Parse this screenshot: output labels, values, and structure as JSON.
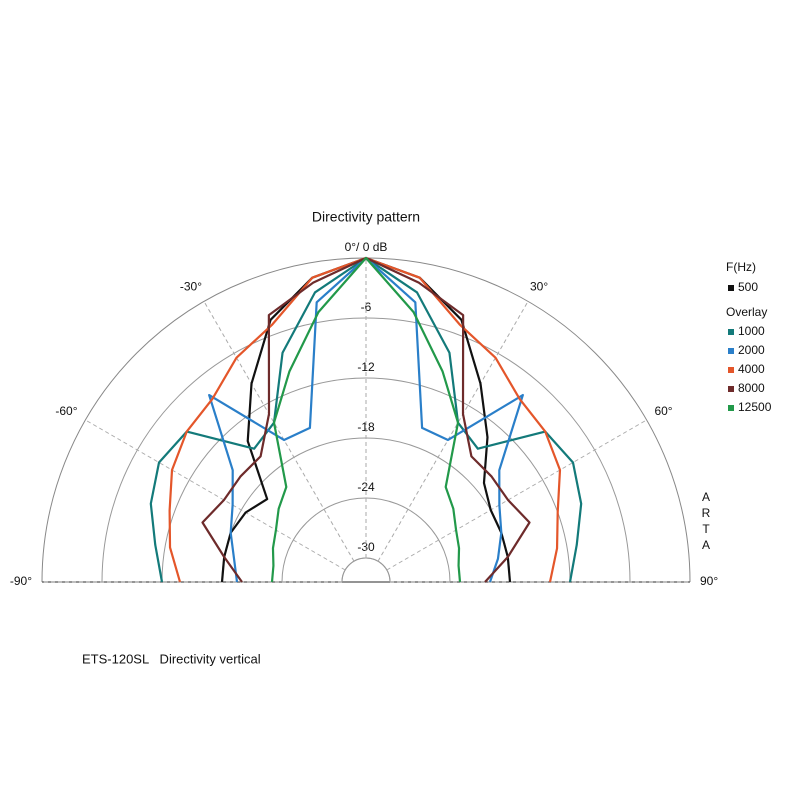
{
  "chart_data": {
    "type": "polar",
    "title": "Directivity pattern",
    "caption": "ETS-120SL   Directivity vertical",
    "side_label": "ARTA",
    "legend_title": "F(Hz)",
    "overlay_label": "Overlay",
    "angles": [
      -90,
      -80,
      -70,
      -60,
      -50,
      -40,
      -30,
      -20,
      -10,
      0,
      10,
      20,
      30,
      40,
      50,
      60,
      70,
      80,
      90
    ],
    "alim": [
      -90,
      90
    ],
    "aticks": [
      {
        "value": -90,
        "label": "-90°"
      },
      {
        "value": -60,
        "label": "-60°"
      },
      {
        "value": -30,
        "label": "-30°"
      },
      {
        "value": 0,
        "label": "0°/ 0 dB"
      },
      {
        "value": 30,
        "label": "30°"
      },
      {
        "value": 60,
        "label": "60°"
      },
      {
        "value": 90,
        "label": "90°"
      }
    ],
    "rlim": [
      -30,
      0
    ],
    "rticks": [
      -30,
      -24,
      -18,
      -12,
      -6
    ],
    "series": [
      {
        "name": "500",
        "color": "#111111",
        "values": [
          -18,
          -18,
          -18,
          -18.5,
          -19.5,
          -14,
          -9.5,
          -4.5,
          -1.5,
          0,
          -1.5,
          -4.5,
          -9.5,
          -13.5,
          -17,
          -18,
          -18,
          -18,
          -18
        ]
      },
      {
        "name": "1000",
        "color": "#137a7a",
        "values": [
          -12,
          -11,
          -9.5,
          -8.5,
          -9,
          -15,
          -14,
          -8,
          -3,
          0,
          -3,
          -8,
          -14,
          -15,
          -9,
          -8.5,
          -9.5,
          -11,
          -12
        ]
      },
      {
        "name": "2000",
        "color": "#2a7fc9",
        "values": [
          -19.5,
          -19,
          -18,
          -17,
          -15,
          -8,
          -16,
          -16,
          -4,
          0,
          -4,
          -16,
          -16,
          -8,
          -15,
          -17,
          -18,
          -19,
          -20
        ]
      },
      {
        "name": "4000",
        "color": "#e4562a",
        "values": [
          -13.8,
          -12.5,
          -11.5,
          -10,
          -9,
          -8.5,
          -6.5,
          -5,
          -1.5,
          0,
          -1.5,
          -5,
          -6.5,
          -8.5,
          -9,
          -10,
          -12,
          -13,
          -14
        ]
      },
      {
        "name": "8000",
        "color": "#6e2b2b",
        "values": [
          -20,
          -18,
          -15,
          -16,
          -16,
          -16,
          -13,
          -4,
          -2,
          0,
          -2,
          -4,
          -13,
          -16,
          -16,
          -16,
          -15,
          -18,
          -20.5
        ]
      },
      {
        "name": "12500",
        "color": "#22994a",
        "values": [
          -23,
          -23,
          -22.5,
          -22,
          -21,
          -20,
          -14,
          -10,
          -5,
          0,
          -5,
          -10,
          -14,
          -20,
          -21,
          -22,
          -22.5,
          -23,
          -23
        ]
      }
    ]
  }
}
